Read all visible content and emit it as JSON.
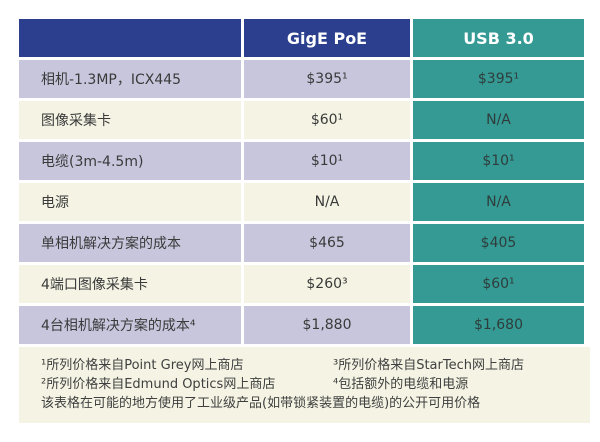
{
  "header": {
    "col_blank": "",
    "col_gige": "GigE PoE",
    "col_usb": "USB 3.0"
  },
  "rows": [
    {
      "label": "相机-1.3MP，ICX445",
      "gige": "$395¹",
      "usb": "$395¹"
    },
    {
      "label": "图像采集卡",
      "gige": "$60¹",
      "usb": "N/A"
    },
    {
      "label": "电缆(3m-4.5m)",
      "gige": "$10¹",
      "usb": "$10¹"
    },
    {
      "label": "电源",
      "gige": "N/A",
      "usb": "N/A"
    },
    {
      "label": "单相机解决方案的成本",
      "gige": "$465",
      "usb": "$405"
    },
    {
      "label": "4端口图像采集卡",
      "gige": "$260³",
      "usb": "$60¹"
    },
    {
      "label": "4台相机解决方案的成本⁴",
      "gige": "$1,880",
      "usb": "$1,680"
    }
  ],
  "footnotes": {
    "fn1": "¹所列价格来自Point Grey网上商店",
    "fn3": "³所列价格来自StarTech网上商店",
    "fn2": "²所列价格来自Edmund Optics网上商店",
    "fn4": "⁴包括额外的电缆和电源",
    "note": "该表格在可能的地方使用了工业级产品(如带锁紧装置的电缆)的公开可用价格"
  },
  "colors": {
    "header_blue": "#2b3f8e",
    "teal": "#359a94",
    "row_lavender": "#c8c6dd",
    "row_cream": "#f5f4e4",
    "cell_text": "#3a3a3a",
    "header_text": "#ffffff"
  },
  "chart_data": {
    "type": "table",
    "columns": [
      "",
      "GigE PoE",
      "USB 3.0"
    ],
    "rows": [
      [
        "相机-1.3MP，ICX445",
        "$395¹",
        "$395¹"
      ],
      [
        "图像采集卡",
        "$60¹",
        "N/A"
      ],
      [
        "电缆(3m-4.5m)",
        "$10¹",
        "$10¹"
      ],
      [
        "电源",
        "N/A",
        "N/A"
      ],
      [
        "单相机解决方案的成本",
        "$465",
        "$405"
      ],
      [
        "4端口图像采集卡",
        "$260³",
        "$60¹"
      ],
      [
        "4台相机解决方案的成本⁴",
        "$1,880",
        "$1,680"
      ]
    ],
    "footnotes": [
      "¹所列价格来自Point Grey网上商店",
      "²所列价格来自Edmund Optics网上商店",
      "³所列价格来自StarTech网上商店",
      "⁴包括额外的电缆和电源",
      "该表格在可能的地方使用了工业级产品(如带锁紧装置的电缆)的公开可用价格"
    ],
    "layout": {
      "header_colors": [
        "#2b3f8e",
        "#2b3f8e",
        "#359a94"
      ],
      "usb_column_color": "#359a94",
      "row_alternate_colors": [
        "#c8c6dd",
        "#f5f4e4"
      ]
    }
  }
}
